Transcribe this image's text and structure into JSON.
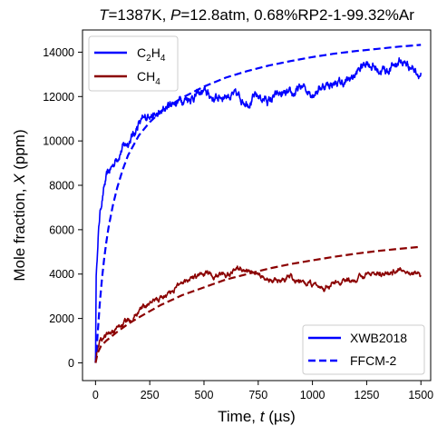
{
  "chart_data": {
    "type": "line",
    "title": {
      "t_symbol": "T",
      "t_value": "=1387K, ",
      "p_symbol": "P",
      "p_value": "=12.8atm, 0.68%RP2-1-99.32%Ar"
    },
    "xlabel": {
      "text": "Time, ",
      "symbol": "t",
      "unit": " (µs)"
    },
    "ylabel": {
      "text": "Mole fraction, ",
      "symbol": "X",
      "unit": " (ppm)"
    },
    "xlim": [
      -60,
      1545
    ],
    "ylim": [
      -800,
      15000
    ],
    "xticks": [
      "0",
      "250",
      "500",
      "750",
      "1000",
      "1250",
      "1500"
    ],
    "yticks": [
      "0",
      "2000",
      "4000",
      "6000",
      "8000",
      "10000",
      "12000",
      "14000"
    ],
    "colors": {
      "C2H4": "#0000ff",
      "CH4": "#8b0000"
    },
    "species_legend": [
      {
        "base": "C",
        "sub1": "2",
        "mid": "H",
        "sub2": "4",
        "color": "#0000ff"
      },
      {
        "base": "CH",
        "sub1": "4",
        "mid": "",
        "sub2": "",
        "color": "#8b0000"
      }
    ],
    "style_legend": [
      {
        "label": "XWB2018",
        "style": "solid"
      },
      {
        "label": "FFCM-2",
        "style": "dashed"
      }
    ],
    "series": [
      {
        "name": "C2H4 XWB2018",
        "style": "solid",
        "color": "#0000ff",
        "noisy": true,
        "x": [
          0,
          3,
          6,
          10,
          15,
          20,
          30,
          40,
          50,
          60,
          80,
          100,
          125,
          150,
          175,
          200,
          225,
          250,
          275,
          300,
          325,
          350,
          400,
          450,
          500,
          550,
          600,
          650,
          700,
          750,
          800,
          850,
          900,
          950,
          1000,
          1050,
          1100,
          1150,
          1200,
          1250,
          1300,
          1350,
          1400,
          1450,
          1500
        ],
        "y": [
          0,
          3800,
          4600,
          5200,
          6100,
          6700,
          7400,
          7900,
          8300,
          8550,
          8900,
          9300,
          9700,
          9950,
          10300,
          10800,
          10900,
          11300,
          11100,
          11200,
          11500,
          11700,
          11900,
          12000,
          12200,
          11900,
          12100,
          12000,
          11800,
          12000,
          11800,
          12100,
          12000,
          12400,
          12200,
          12500,
          12600,
          12600,
          13000,
          13600,
          13200,
          13200,
          13600,
          13400,
          13000
        ]
      },
      {
        "name": "CH4 XWB2018",
        "style": "solid",
        "color": "#8b0000",
        "noisy": true,
        "x": [
          0,
          5,
          10,
          20,
          40,
          60,
          80,
          100,
          150,
          200,
          250,
          300,
          350,
          400,
          450,
          500,
          550,
          600,
          650,
          700,
          750,
          800,
          850,
          900,
          950,
          1000,
          1050,
          1100,
          1150,
          1200,
          1250,
          1300,
          1350,
          1400,
          1450,
          1500
        ],
        "y": [
          0,
          500,
          800,
          1000,
          1200,
          1300,
          1400,
          1550,
          1900,
          2350,
          2700,
          2900,
          3200,
          3700,
          3900,
          4000,
          3900,
          4000,
          4300,
          4100,
          4000,
          3700,
          3800,
          3800,
          3600,
          3500,
          3400,
          3550,
          3700,
          3700,
          4100,
          4000,
          4000,
          4200,
          4100,
          3900
        ]
      },
      {
        "name": "C2H4 FFCM-2",
        "style": "dashed",
        "color": "#0000ff",
        "noisy": false,
        "x": [
          0,
          10,
          20,
          30,
          40,
          50,
          60,
          80,
          100,
          125,
          150,
          200,
          250,
          300,
          350,
          400,
          500,
          600,
          700,
          800,
          900,
          1000,
          1100,
          1200,
          1300,
          1400,
          1500
        ],
        "y": [
          0,
          1300,
          2700,
          3800,
          4700,
          5450,
          6100,
          7100,
          7900,
          8700,
          9350,
          10250,
          10850,
          11300,
          11650,
          11950,
          12450,
          12850,
          13150,
          13400,
          13600,
          13780,
          13930,
          14050,
          14150,
          14250,
          14330
        ]
      },
      {
        "name": "CH4 FFCM-2",
        "style": "dashed",
        "color": "#8b0000",
        "noisy": false,
        "x": [
          0,
          10,
          25,
          50,
          100,
          150,
          200,
          300,
          400,
          500,
          600,
          700,
          800,
          900,
          1000,
          1100,
          1200,
          1300,
          1400,
          1500
        ],
        "y": [
          0,
          450,
          750,
          1000,
          1400,
          1750,
          2050,
          2600,
          3050,
          3400,
          3750,
          4000,
          4250,
          4450,
          4620,
          4780,
          4920,
          5040,
          5140,
          5230
        ]
      }
    ]
  }
}
